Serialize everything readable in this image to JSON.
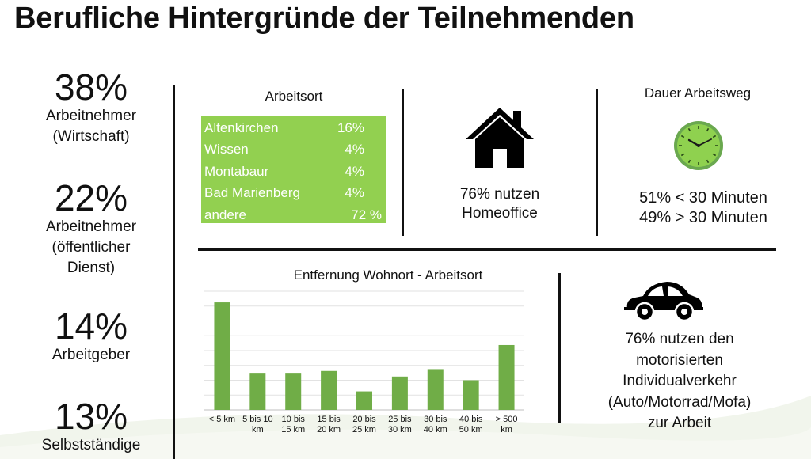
{
  "title": "Berufliche Hintergründe der Teilnehmenden",
  "stats": [
    {
      "pct": "38%",
      "label_lines": [
        "Arbeitnehmer",
        "(Wirtschaft)"
      ]
    },
    {
      "pct": "22%",
      "label_lines": [
        "Arbeitnehmer",
        "(öffentlicher",
        "Dienst)"
      ]
    },
    {
      "pct": "14%",
      "label_lines": [
        "Arbeitgeber"
      ]
    },
    {
      "pct": "13%",
      "label_lines": [
        "Selbstständige"
      ]
    }
  ],
  "arbeitsort": {
    "heading": "Arbeitsort",
    "rows": [
      {
        "place": "Altenkirchen",
        "value": "16%"
      },
      {
        "place": "Wissen",
        "value": "4%"
      },
      {
        "place": "Montabaur",
        "value": "4%"
      },
      {
        "place": "Bad Marienberg",
        "value": "4%"
      },
      {
        "place": "andere",
        "value": "72 %"
      }
    ],
    "color": "#92d050"
  },
  "homeoffice": {
    "icon": "house-icon",
    "line1": "76% nutzen",
    "line2": "Homeoffice"
  },
  "arbeitsweg": {
    "heading": "Dauer Arbeitsweg",
    "icon": "clock-icon",
    "line1": "51% < 30 Minuten",
    "line2": "49% > 30 Minuten"
  },
  "auto": {
    "icon": "car-icon",
    "lines": [
      "76% nutzen den",
      "motorisierten",
      "Individualverkehr",
      "(Auto/Motorrad/Mofa)",
      "zur Arbeit"
    ]
  },
  "chart_data": {
    "type": "bar",
    "title": "Entfernung Wohnort - Arbeitsort",
    "categories": [
      "< 5 km",
      "5 bis 10 km",
      "10 bis 15 km",
      "15 bis 20 km",
      "20 bis 25 km",
      "25 bis 30 km",
      "30 bis 40 km",
      "40 bis 50 km",
      "> 500 km"
    ],
    "category_lines": [
      [
        "< 5 km"
      ],
      [
        "5 bis 10",
        "km"
      ],
      [
        "10 bis",
        "15 km"
      ],
      [
        "15 bis",
        "20 km"
      ],
      [
        "20 bis",
        "25 km"
      ],
      [
        "25 bis",
        "30 km"
      ],
      [
        "30 bis",
        "40 km"
      ],
      [
        "40 bis",
        "50 km"
      ],
      [
        "> 500",
        "km"
      ]
    ],
    "values": [
      29,
      10,
      10,
      10.5,
      5,
      9,
      11,
      8,
      17.5
    ],
    "ylim": [
      0,
      32
    ],
    "gridlines": 8,
    "grid": true,
    "color": "#70ad47"
  }
}
